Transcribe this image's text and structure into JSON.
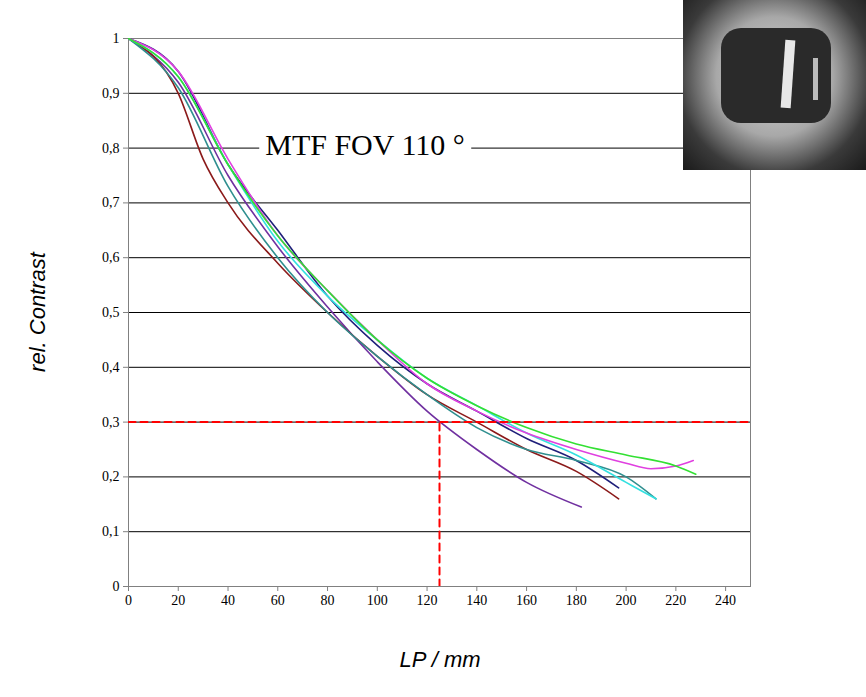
{
  "chart_data": {
    "type": "line",
    "title": "MTF FOV 110 °",
    "x_label": "LP / mm",
    "y_label": "rel. Contrast",
    "xlim": [
      0,
      250
    ],
    "xticks": [
      0,
      20,
      40,
      60,
      80,
      100,
      120,
      140,
      160,
      180,
      200,
      220,
      240
    ],
    "ylim": [
      0,
      1
    ],
    "yticks": [
      0,
      {
        "value": 0.1,
        "label": "0,1"
      },
      {
        "value": 0.2,
        "label": "0,2"
      },
      {
        "value": 0.3,
        "label": "0,3"
      },
      {
        "value": 0.4,
        "label": "0,4"
      },
      {
        "value": 0.5,
        "label": "0,5"
      },
      {
        "value": 0.6,
        "label": "0,6"
      },
      {
        "value": 0.7,
        "label": "0,7"
      },
      {
        "value": 0.8,
        "label": "0,8"
      },
      {
        "value": 0.9,
        "label": "0,9"
      },
      1
    ],
    "grid": true,
    "series": [
      {
        "color": "#7030a0",
        "x": [
          0,
          20,
          40,
          60,
          80,
          100,
          120,
          140,
          160,
          182
        ],
        "values": [
          1,
          0.92,
          0.75,
          0.62,
          0.51,
          0.41,
          0.32,
          0.25,
          0.19,
          0.145
        ]
      },
      {
        "color": "#8b1a1a",
        "x": [
          0,
          20,
          30,
          40,
          60,
          80,
          100,
          120,
          140,
          160,
          180,
          197
        ],
        "values": [
          1,
          0.9,
          0.78,
          0.7,
          0.59,
          0.5,
          0.42,
          0.35,
          0.3,
          0.25,
          0.21,
          0.16
        ]
      },
      {
        "color": "#1f1f7a",
        "x": [
          0,
          20,
          40,
          60,
          80,
          100,
          120,
          140,
          160,
          180,
          197
        ],
        "values": [
          1,
          0.94,
          0.77,
          0.65,
          0.53,
          0.44,
          0.37,
          0.32,
          0.27,
          0.23,
          0.18
        ]
      },
      {
        "color": "#2f8f8f",
        "x": [
          0,
          20,
          40,
          60,
          80,
          100,
          120,
          140,
          160,
          180,
          200,
          212
        ],
        "values": [
          1,
          0.91,
          0.73,
          0.6,
          0.5,
          0.42,
          0.35,
          0.29,
          0.25,
          0.23,
          0.2,
          0.16
        ]
      },
      {
        "color": "#33e0e0",
        "x": [
          0,
          20,
          40,
          60,
          80,
          100,
          120,
          140,
          160,
          180,
          200,
          212
        ],
        "values": [
          1,
          0.93,
          0.77,
          0.63,
          0.53,
          0.45,
          0.38,
          0.33,
          0.28,
          0.24,
          0.19,
          0.16
        ]
      },
      {
        "color": "#e040e0",
        "x": [
          0,
          20,
          40,
          60,
          80,
          100,
          120,
          140,
          160,
          180,
          200,
          210,
          220,
          227
        ],
        "values": [
          1,
          0.94,
          0.78,
          0.64,
          0.54,
          0.45,
          0.37,
          0.32,
          0.28,
          0.25,
          0.225,
          0.215,
          0.22,
          0.23
        ]
      },
      {
        "color": "#33e033",
        "x": [
          0,
          20,
          40,
          60,
          80,
          100,
          120,
          140,
          160,
          180,
          200,
          220,
          228
        ],
        "values": [
          1,
          0.93,
          0.77,
          0.64,
          0.54,
          0.45,
          0.38,
          0.33,
          0.29,
          0.26,
          0.24,
          0.22,
          0.205
        ]
      }
    ],
    "reference_lines": [
      {
        "x": [
          0,
          250
        ],
        "y": [
          0.3,
          0.3
        ],
        "color": "#ff0000",
        "line_style": "dashed"
      },
      {
        "x": [
          125,
          125
        ],
        "y": [
          0,
          0.3
        ],
        "color": "#ff0000",
        "line_style": "dashed"
      }
    ]
  }
}
